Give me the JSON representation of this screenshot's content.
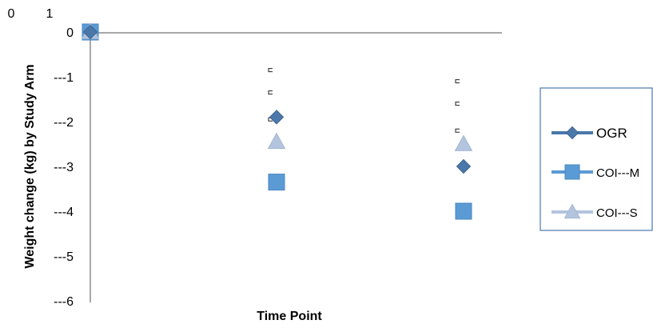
{
  "chart_data": {
    "type": "scatter",
    "title": "",
    "xlabel": "Time Point",
    "ylabel": "Weight change (kg) by Study Arm",
    "ylim": [
      -6,
      0
    ],
    "grid": false,
    "legend_position": "right",
    "top_tick_labels": [
      "0",
      "1"
    ],
    "y_tick_labels": [
      "0",
      "---1",
      "---2",
      "---3",
      "---4",
      "---5",
      "---6"
    ],
    "y_ticks": [
      0,
      -1,
      -2,
      -3,
      -4,
      -5,
      -6
    ],
    "x": [
      0,
      1,
      2
    ],
    "series": [
      {
        "name": "OGR",
        "marker": "diamond",
        "color": "#4a78aa",
        "values": [
          0,
          -1.9,
          -3.0
        ]
      },
      {
        "name": "COI---M",
        "marker": "square",
        "color": "#5b9bd5",
        "values": [
          0,
          -3.35,
          -4.0
        ]
      },
      {
        "name": "COI---S",
        "marker": "triangle",
        "color": "#b3c4de",
        "values": [
          0,
          -2.45,
          -2.5
        ]
      }
    ],
    "error_markers": [
      {
        "x": 1,
        "values": [
          -0.85,
          -1.35,
          -1.95
        ]
      },
      {
        "x": 2,
        "values": [
          -1.1,
          -1.6,
          -2.2
        ]
      }
    ]
  }
}
